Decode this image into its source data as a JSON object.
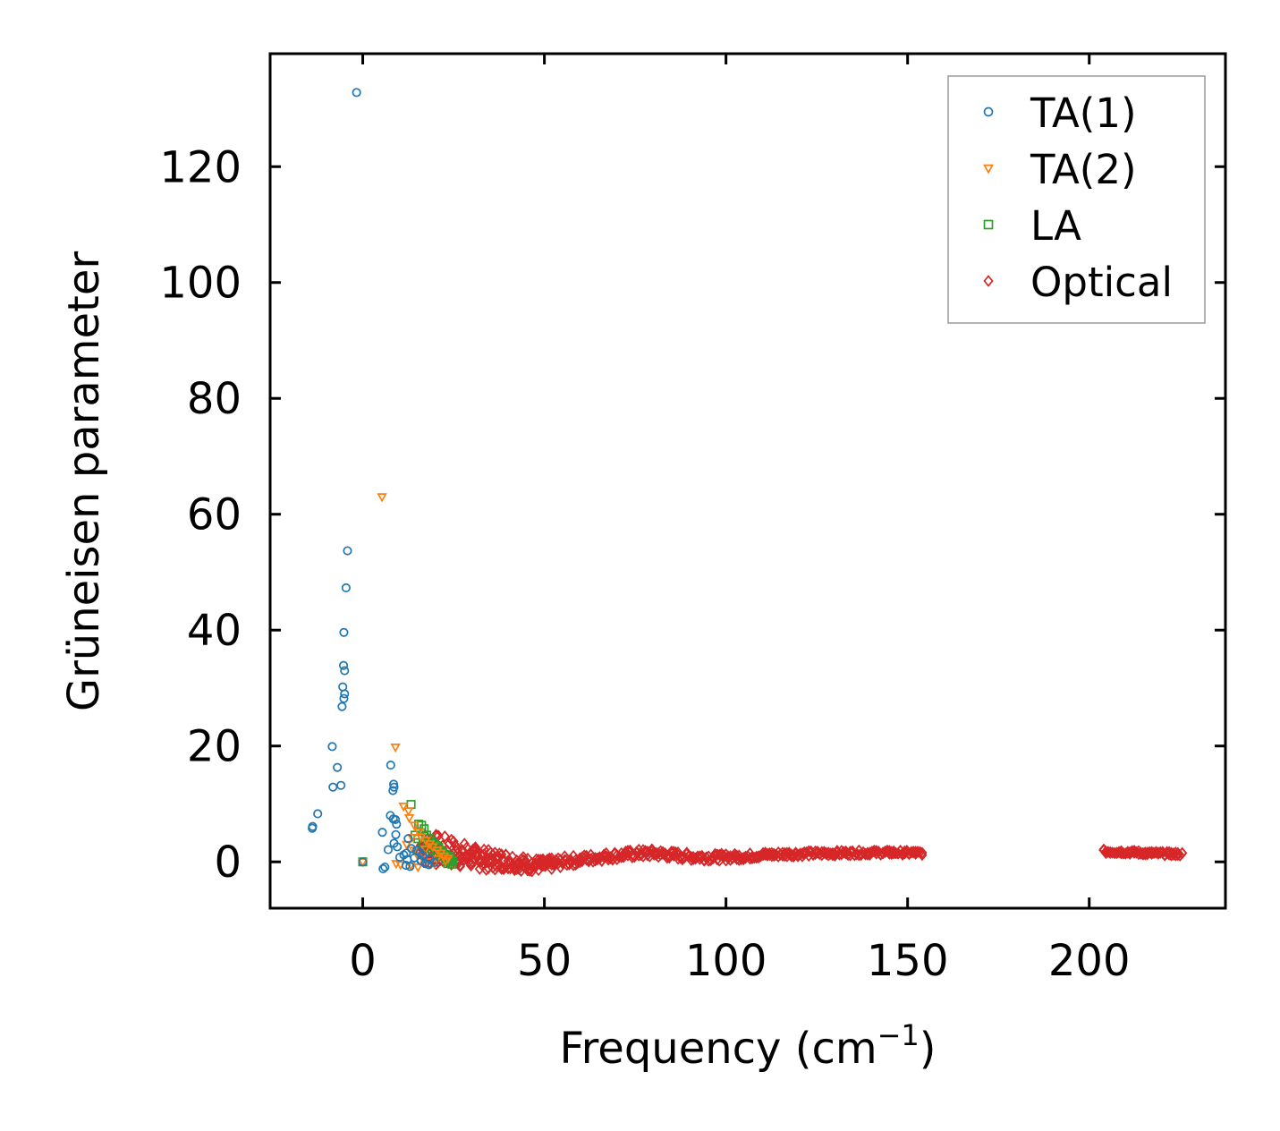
{
  "chart_data": {
    "type": "scatter",
    "title": "",
    "xlabel": "Frequency (cm",
    "xlabel_sup": "−1",
    "xlabel_close": ")",
    "ylabel": "Grüneisen parameter",
    "xlim": [
      -25.5,
      237.5
    ],
    "ylim": [
      -8,
      139.5
    ],
    "xticks": [
      0,
      50,
      100,
      150,
      200
    ],
    "yticks": [
      0,
      20,
      40,
      60,
      80,
      100,
      120
    ],
    "xtick_labels": [
      "0",
      "50",
      "100",
      "150",
      "200"
    ],
    "ytick_labels": [
      "0",
      "20",
      "40",
      "60",
      "80",
      "100",
      "120"
    ],
    "grid": false,
    "legend_position": "top-right",
    "series": [
      {
        "name": "TA(1)",
        "marker": "circle",
        "color": "#1f77b4",
        "points": [
          [
            -1.7,
            132.8
          ],
          [
            -4.2,
            53.7
          ],
          [
            -4.6,
            47.3
          ],
          [
            -5.2,
            39.6
          ],
          [
            -5.3,
            33.9
          ],
          [
            -5.0,
            33.0
          ],
          [
            -5.5,
            30.2
          ],
          [
            -5.0,
            29.0
          ],
          [
            -5.2,
            28.2
          ],
          [
            -5.7,
            26.8
          ],
          [
            -8.4,
            19.9
          ],
          [
            -7.0,
            16.3
          ],
          [
            -8.2,
            12.9
          ],
          [
            -6.0,
            13.2
          ],
          [
            -12.4,
            8.3
          ],
          [
            -13.8,
            6.1
          ],
          [
            -13.9,
            5.8
          ],
          [
            7.7,
            16.7
          ],
          [
            8.5,
            13.4
          ],
          [
            8.6,
            12.9
          ],
          [
            8.3,
            12.3
          ],
          [
            7.6,
            8.0
          ],
          [
            8.4,
            7.4
          ],
          [
            9.0,
            7.3
          ],
          [
            9.3,
            6.5
          ],
          [
            5.4,
            5.1
          ],
          [
            9.1,
            4.7
          ],
          [
            12.5,
            4.0
          ],
          [
            8.6,
            3.2
          ],
          [
            7.0,
            2.1
          ],
          [
            9.5,
            2.6
          ],
          [
            13.4,
            2.3
          ],
          [
            14.9,
            2.0
          ],
          [
            15.8,
            1.6
          ],
          [
            11.3,
            1.2
          ],
          [
            14.2,
            0.7
          ],
          [
            12.3,
            0.4
          ],
          [
            16.0,
            0.2
          ],
          [
            17.2,
            -0.3
          ],
          [
            19.7,
            -0.1
          ],
          [
            11.9,
            -0.6
          ],
          [
            6.1,
            -0.9
          ],
          [
            5.6,
            -1.2
          ],
          [
            18.2,
            -0.5
          ],
          [
            0.0,
            0.0
          ],
          [
            13.0,
            -0.8
          ],
          [
            10.2,
            0.8
          ],
          [
            16.5,
            1.1
          ],
          [
            18.5,
            0.5
          ],
          [
            12.0,
            1.5
          ]
        ]
      },
      {
        "name": "TA(2)",
        "marker": "triangle-down",
        "color": "#ff7f0e",
        "points": [
          [
            5.3,
            63.0
          ],
          [
            9.0,
            19.8
          ],
          [
            11.2,
            9.6
          ],
          [
            12.6,
            8.8
          ],
          [
            12.8,
            7.6
          ],
          [
            14.2,
            6.3
          ],
          [
            15.4,
            5.2
          ],
          [
            16.0,
            4.3
          ],
          [
            17.4,
            3.7
          ],
          [
            18.5,
            3.1
          ],
          [
            19.3,
            2.6
          ],
          [
            20.6,
            2.0
          ],
          [
            21.5,
            1.5
          ],
          [
            22.4,
            1.0
          ],
          [
            23.5,
            0.6
          ],
          [
            14.0,
            2.0
          ],
          [
            15.0,
            1.2
          ],
          [
            16.6,
            0.4
          ],
          [
            18.0,
            0.0
          ],
          [
            19.8,
            -0.4
          ],
          [
            0.0,
            0.0
          ],
          [
            9.2,
            -0.3
          ],
          [
            10.4,
            -0.5
          ],
          [
            13.2,
            -0.6
          ],
          [
            15.2,
            -0.9
          ],
          [
            12.1,
            3.0
          ],
          [
            13.6,
            4.2
          ],
          [
            17.2,
            2.2
          ],
          [
            20.4,
            0.5
          ],
          [
            22.8,
            0.2
          ]
        ]
      },
      {
        "name": "LA",
        "marker": "square",
        "color": "#2ca02c",
        "points": [
          [
            0.0,
            0.0
          ],
          [
            13.3,
            9.9
          ],
          [
            15.4,
            6.5
          ],
          [
            16.2,
            6.3
          ],
          [
            16.9,
            5.7
          ],
          [
            17.6,
            4.6
          ],
          [
            18.3,
            4.0
          ],
          [
            18.8,
            3.6
          ],
          [
            19.6,
            3.2
          ],
          [
            20.2,
            2.8
          ],
          [
            20.9,
            2.5
          ],
          [
            21.5,
            2.0
          ],
          [
            22.1,
            1.7
          ],
          [
            22.6,
            1.3
          ],
          [
            23.1,
            1.0
          ],
          [
            23.6,
            0.7
          ],
          [
            24.0,
            0.4
          ],
          [
            24.3,
            0.0
          ],
          [
            24.6,
            -0.4
          ],
          [
            24.1,
            0.9
          ],
          [
            22.8,
            0.5
          ],
          [
            21.6,
            1.0
          ],
          [
            20.4,
            1.5
          ],
          [
            19.0,
            2.1
          ],
          [
            17.8,
            2.6
          ],
          [
            16.6,
            3.2
          ],
          [
            15.2,
            4.0
          ],
          [
            14.4,
            4.6
          ],
          [
            23.4,
            -0.3
          ],
          [
            24.8,
            0.2
          ]
        ]
      },
      {
        "name": "Optical",
        "marker": "diamond",
        "color": "#d62728",
        "segments": [
          {
            "path": [
              [
                16,
                2.5
              ],
              [
                25,
                1.6
              ],
              [
                30,
                0.8
              ],
              [
                35,
                0.3
              ],
              [
                40,
                0.2
              ],
              [
                45,
                -0.4
              ],
              [
                50,
                -0.6
              ],
              [
                55,
                0.0
              ],
              [
                60,
                0.4
              ],
              [
                65,
                0.8
              ],
              [
                70,
                1.1
              ],
              [
                75,
                1.4
              ],
              [
                80,
                1.5
              ],
              [
                85,
                1.2
              ],
              [
                90,
                0.9
              ],
              [
                95,
                0.8
              ],
              [
                100,
                0.8
              ],
              [
                105,
                0.9
              ],
              [
                110,
                1.2
              ],
              [
                120,
                1.4
              ],
              [
                130,
                1.5
              ],
              [
                140,
                1.6
              ],
              [
                148,
                1.6
              ],
              [
                154,
                1.5
              ]
            ],
            "spread": [
              [
                16,
                6.0
              ],
              [
                25,
                5.0
              ],
              [
                30,
                4.0
              ],
              [
                40,
                3.0
              ],
              [
                50,
                2.2
              ],
              [
                60,
                1.6
              ],
              [
                70,
                1.4
              ],
              [
                80,
                1.5
              ],
              [
                90,
                1.3
              ],
              [
                100,
                1.2
              ],
              [
                110,
                1.0
              ],
              [
                154,
                0.7
              ]
            ]
          },
          {
            "path": [
              [
                204,
                1.8
              ],
              [
                210,
                1.7
              ],
              [
                216,
                1.5
              ],
              [
                222,
                1.4
              ],
              [
                226,
                1.3
              ]
            ],
            "spread": [
              [
                204,
                0.7
              ],
              [
                226,
                0.6
              ]
            ]
          }
        ]
      }
    ]
  }
}
